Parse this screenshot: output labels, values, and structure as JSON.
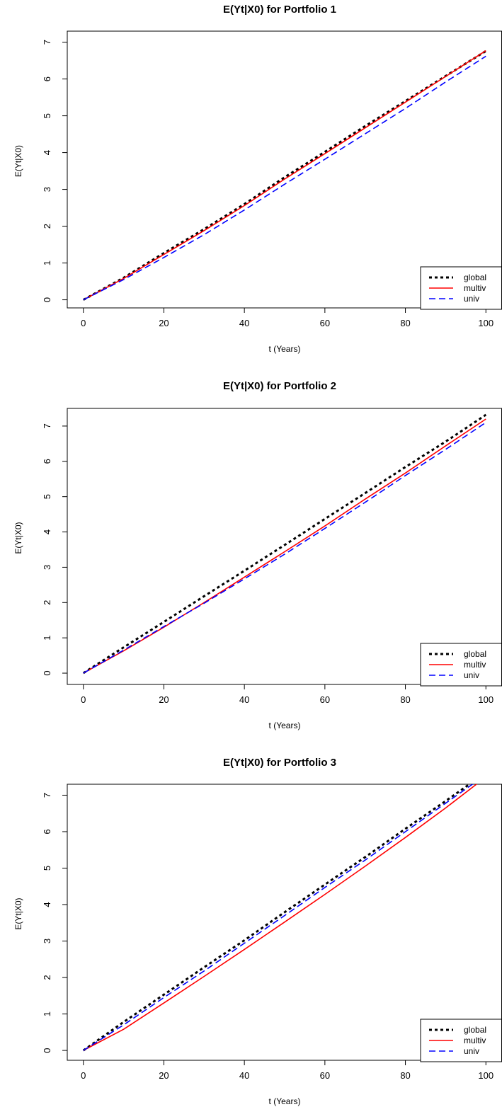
{
  "chart_data": [
    {
      "type": "line",
      "title": "E(Yt|X0) for Portfolio 1",
      "xlabel": "t (Years)",
      "ylabel": "E(Yt|X0)",
      "xlim": [
        -4,
        104
      ],
      "ylim": [
        -0.22,
        7.3
      ],
      "xticks": [
        0,
        20,
        40,
        60,
        80,
        100
      ],
      "yticks": [
        0,
        1,
        2,
        3,
        4,
        5,
        6,
        7
      ],
      "legend": {
        "position": "bottom-right",
        "entries": [
          "global",
          "multiv",
          "univ"
        ]
      },
      "grid": false,
      "x": [
        0,
        10,
        20,
        30,
        40,
        50,
        60,
        70,
        80,
        90,
        100
      ],
      "series": [
        {
          "name": "global",
          "color": "#000000",
          "dash": "dotted",
          "values": [
            0,
            0.6,
            1.27,
            1.92,
            2.6,
            3.33,
            4.02,
            4.72,
            5.4,
            6.08,
            6.76
          ]
        },
        {
          "name": "multiv",
          "color": "#ff0000",
          "dash": "solid",
          "values": [
            0,
            0.58,
            1.23,
            1.88,
            2.56,
            3.28,
            3.97,
            4.67,
            5.37,
            6.07,
            6.77
          ]
        },
        {
          "name": "univ",
          "color": "#0000ff",
          "dash": "dashed",
          "values": [
            0,
            0.55,
            1.15,
            1.77,
            2.44,
            3.14,
            3.82,
            4.51,
            5.2,
            5.92,
            6.62
          ]
        }
      ]
    },
    {
      "type": "line",
      "title": "E(Yt|X0) for Portfolio 2",
      "xlabel": "t (Years)",
      "ylabel": "E(Yt|X0)",
      "xlim": [
        -4,
        104
      ],
      "ylim": [
        -0.32,
        7.5
      ],
      "xticks": [
        0,
        20,
        40,
        60,
        80,
        100
      ],
      "yticks": [
        0,
        1,
        2,
        3,
        4,
        5,
        6,
        7
      ],
      "legend": {
        "position": "bottom-right",
        "entries": [
          "global",
          "multiv",
          "univ"
        ]
      },
      "grid": false,
      "x": [
        0,
        10,
        20,
        30,
        40,
        50,
        60,
        70,
        80,
        90,
        100
      ],
      "series": [
        {
          "name": "global",
          "color": "#000000",
          "dash": "dotted",
          "values": [
            0,
            0.73,
            1.45,
            2.18,
            2.9,
            3.63,
            4.37,
            5.1,
            5.84,
            6.56,
            7.32
          ]
        },
        {
          "name": "multiv",
          "color": "#ff0000",
          "dash": "solid",
          "values": [
            0,
            0.63,
            1.3,
            2.0,
            2.72,
            3.44,
            4.17,
            4.93,
            5.67,
            6.44,
            7.2
          ]
        },
        {
          "name": "univ",
          "color": "#0000ff",
          "dash": "dashed",
          "values": [
            0,
            0.65,
            1.32,
            1.98,
            2.67,
            3.37,
            4.1,
            4.84,
            5.6,
            6.34,
            7.1
          ]
        }
      ]
    },
    {
      "type": "line",
      "title": "E(Yt|X0) for Portfolio 3",
      "xlabel": "t (Years)",
      "ylabel": "E(Yt|X0)",
      "xlim": [
        -4,
        104
      ],
      "ylim": [
        -0.27,
        7.3
      ],
      "xticks": [
        0,
        20,
        40,
        60,
        80,
        100
      ],
      "yticks": [
        0,
        1,
        2,
        3,
        4,
        5,
        6,
        7
      ],
      "legend": {
        "position": "bottom-right",
        "entries": [
          "global",
          "multiv",
          "univ"
        ]
      },
      "grid": false,
      "x": [
        0,
        10,
        20,
        30,
        40,
        50,
        60,
        70,
        80,
        90,
        100
      ],
      "series": [
        {
          "name": "global",
          "color": "#000000",
          "dash": "dotted",
          "values": [
            0,
            0.78,
            1.53,
            2.28,
            3.02,
            3.79,
            4.55,
            5.3,
            6.08,
            6.84,
            7.62
          ]
        },
        {
          "name": "multiv",
          "color": "#ff0000",
          "dash": "solid",
          "values": [
            0,
            0.58,
            1.3,
            2.03,
            2.77,
            3.52,
            4.28,
            5.05,
            5.84,
            6.65,
            7.5
          ]
        },
        {
          "name": "univ",
          "color": "#0000ff",
          "dash": "dashed",
          "values": [
            0,
            0.7,
            1.45,
            2.18,
            2.94,
            3.7,
            4.47,
            5.22,
            6.0,
            6.78,
            7.56
          ]
        }
      ]
    }
  ]
}
